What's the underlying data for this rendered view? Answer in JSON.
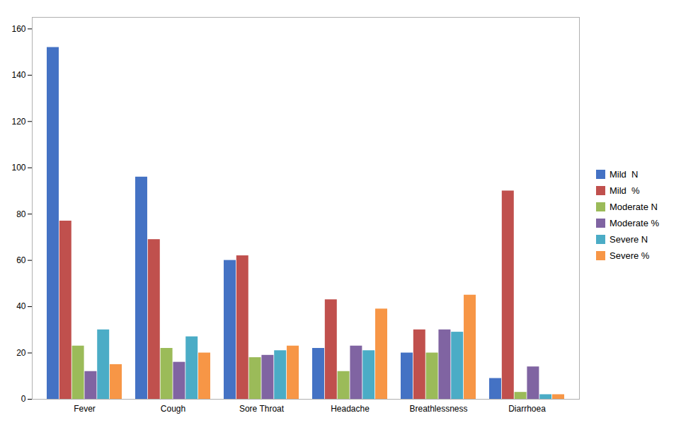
{
  "chart_data": {
    "type": "bar",
    "categories": [
      "Fever",
      "Cough",
      "Sore Throat",
      "Headache",
      "Breathlessness",
      "Diarrhoea"
    ],
    "series": [
      {
        "name": "Mild  N",
        "color": "#4472C4",
        "values": [
          152,
          96,
          60,
          22,
          20,
          9
        ]
      },
      {
        "name": "Mild  %",
        "color": "#C0504D",
        "values": [
          77,
          69,
          62,
          43,
          30,
          90
        ]
      },
      {
        "name": "Moderate N",
        "color": "#9BBB59",
        "values": [
          23,
          22,
          18,
          12,
          20,
          3
        ]
      },
      {
        "name": "Moderate %",
        "color": "#8064A2",
        "values": [
          12,
          16,
          19,
          23,
          30,
          14
        ]
      },
      {
        "name": "Severe N",
        "color": "#4BACC6",
        "values": [
          30,
          27,
          21,
          21,
          29,
          2
        ]
      },
      {
        "name": "Severe %",
        "color": "#F79646",
        "values": [
          15,
          20,
          23,
          39,
          45,
          2
        ]
      }
    ],
    "ylim": [
      0,
      165
    ],
    "yticks": [
      0,
      20,
      40,
      60,
      80,
      100,
      120,
      140,
      160
    ],
    "grid": false,
    "legend": "right"
  }
}
